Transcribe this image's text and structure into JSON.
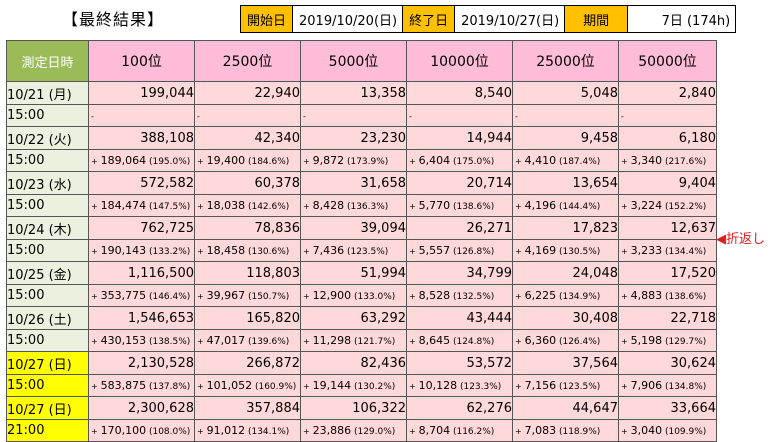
{
  "title": "【最終結果】",
  "info": {
    "start_label": "開始日",
    "start_value": "2019/10/20(日)",
    "end_label": "終了日",
    "end_value": "2019/10/27(日)",
    "period_label": "期間",
    "period_value": "7日 (174h)"
  },
  "header": {
    "date_col": "測定日時",
    "ranks": [
      "100位",
      "2500位",
      "5000位",
      "10000位",
      "25000位",
      "50000位"
    ]
  },
  "rows": [
    {
      "date": "10/21 (月)",
      "time": "15:00",
      "values": [
        "199,044",
        "22,940",
        "13,358",
        "8,540",
        "5,048",
        "2,840"
      ],
      "diffs": [
        [
          "-",
          "",
          ""
        ],
        [
          "-",
          "",
          ""
        ],
        [
          "-",
          "",
          ""
        ],
        [
          "-",
          "",
          ""
        ],
        [
          "-",
          "",
          ""
        ],
        [
          "-",
          "",
          ""
        ]
      ]
    },
    {
      "date": "10/22 (火)",
      "time": "15:00",
      "values": [
        "388,108",
        "42,340",
        "23,230",
        "14,944",
        "9,458",
        "6,180"
      ],
      "diffs": [
        [
          "+",
          "189,064",
          "(195.0%)"
        ],
        [
          "+",
          "19,400",
          "(184.6%)"
        ],
        [
          "+",
          "9,872",
          "(173.9%)"
        ],
        [
          "+",
          "6,404",
          "(175.0%)"
        ],
        [
          "+",
          "4,410",
          "(187.4%)"
        ],
        [
          "+",
          "3,340",
          "(217.6%)"
        ]
      ]
    },
    {
      "date": "10/23 (水)",
      "time": "15:00",
      "values": [
        "572,582",
        "60,378",
        "31,658",
        "20,714",
        "13,654",
        "9,404"
      ],
      "diffs": [
        [
          "+",
          "184,474",
          "(147.5%)"
        ],
        [
          "+",
          "18,038",
          "(142.6%)"
        ],
        [
          "+",
          "8,428",
          "(136.3%)"
        ],
        [
          "+",
          "5,770",
          "(138.6%)"
        ],
        [
          "+",
          "4,196",
          "(144.4%)"
        ],
        [
          "+",
          "3,224",
          "(152.2%)"
        ]
      ]
    },
    {
      "date": "10/24 (木)",
      "time": "15:00",
      "values": [
        "762,725",
        "78,836",
        "39,094",
        "26,271",
        "17,823",
        "12,637"
      ],
      "diffs": [
        [
          "+",
          "190,143",
          "(133.2%)"
        ],
        [
          "+",
          "18,458",
          "(130.6%)"
        ],
        [
          "+",
          "7,436",
          "(123.5%)"
        ],
        [
          "+",
          "5,557",
          "(126.8%)"
        ],
        [
          "+",
          "4,169",
          "(130.5%)"
        ],
        [
          "+",
          "3,233",
          "(134.4%)"
        ]
      ]
    },
    {
      "date": "10/25 (金)",
      "time": "15:00",
      "values": [
        "1,116,500",
        "118,803",
        "51,994",
        "34,799",
        "24,048",
        "17,520"
      ],
      "diffs": [
        [
          "+",
          "353,775",
          "(146.4%)"
        ],
        [
          "+",
          "39,967",
          "(150.7%)"
        ],
        [
          "+",
          "12,900",
          "(133.0%)"
        ],
        [
          "+",
          "8,528",
          "(132.5%)"
        ],
        [
          "+",
          "6,225",
          "(134.9%)"
        ],
        [
          "+",
          "4,883",
          "(138.6%)"
        ]
      ]
    },
    {
      "date": "10/26 (土)",
      "time": "15:00",
      "values": [
        "1,546,653",
        "165,820",
        "63,292",
        "43,444",
        "30,408",
        "22,718"
      ],
      "diffs": [
        [
          "+",
          "430,153",
          "(138.5%)"
        ],
        [
          "+",
          "47,017",
          "(139.6%)"
        ],
        [
          "+",
          "11,298",
          "(121.7%)"
        ],
        [
          "+",
          "8,645",
          "(124.8%)"
        ],
        [
          "+",
          "6,360",
          "(126.4%)"
        ],
        [
          "+",
          "5,198",
          "(129.7%)"
        ]
      ]
    },
    {
      "date": "10/27 (日)",
      "time": "15:00",
      "values": [
        "2,130,528",
        "266,872",
        "82,436",
        "53,572",
        "37,564",
        "30,624"
      ],
      "diffs": [
        [
          "+",
          "583,875",
          "(137.8%)"
        ],
        [
          "+",
          "101,052",
          "(160.9%)"
        ],
        [
          "+",
          "19,144",
          "(130.2%)"
        ],
        [
          "+",
          "10,128",
          "(123.3%)"
        ],
        [
          "+",
          "7,156",
          "(123.5%)"
        ],
        [
          "+",
          "7,906",
          "(134.8%)"
        ]
      ]
    },
    {
      "date": "10/27 (日)",
      "time": "21:00",
      "values": [
        "2,300,628",
        "357,884",
        "106,322",
        "62,276",
        "44,647",
        "33,664"
      ],
      "diffs": [
        [
          "+",
          "170,100",
          "(108.0%)"
        ],
        [
          "+",
          "91,012",
          "(134.1%)"
        ],
        [
          "+",
          "23,886",
          "(129.0%)"
        ],
        [
          "+",
          "8,704",
          "(116.2%)"
        ],
        [
          "+",
          "7,083",
          "(118.9%)"
        ],
        [
          "+",
          "3,040",
          "(109.9%)"
        ]
      ]
    }
  ],
  "row_styles": [
    "green",
    "green",
    "green",
    "green",
    "green",
    "green",
    "yellow",
    "yellow"
  ],
  "note": "◀折返し",
  "colors": {
    "header_pink": "#ffbcd9",
    "cell_pink": "#ffd9d9",
    "date_green": "#9bbb59",
    "highlight_yellow": "#ffff00",
    "label_orange": "#ffc000"
  }
}
